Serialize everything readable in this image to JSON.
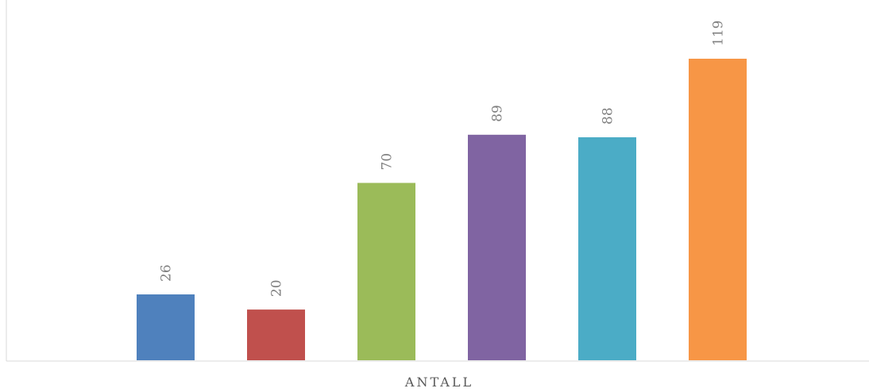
{
  "chart_data": {
    "type": "bar",
    "categories": [
      "ANTALL"
    ],
    "series": [
      {
        "values": [
          26
        ],
        "color": "#4f81bd"
      },
      {
        "values": [
          20
        ],
        "color": "#c0504d"
      },
      {
        "values": [
          70
        ],
        "color": "#9bbb59"
      },
      {
        "values": [
          89
        ],
        "color": "#8064a2"
      },
      {
        "values": [
          88
        ],
        "color": "#4bacc6"
      },
      {
        "values": [
          119
        ],
        "color": "#f79646"
      }
    ],
    "data_labels": [
      "26",
      "20",
      "70",
      "89",
      "88",
      "119"
    ],
    "data_label_orientation": "vertical",
    "ylim": [
      0,
      140
    ],
    "grid": false,
    "legend": "none"
  }
}
